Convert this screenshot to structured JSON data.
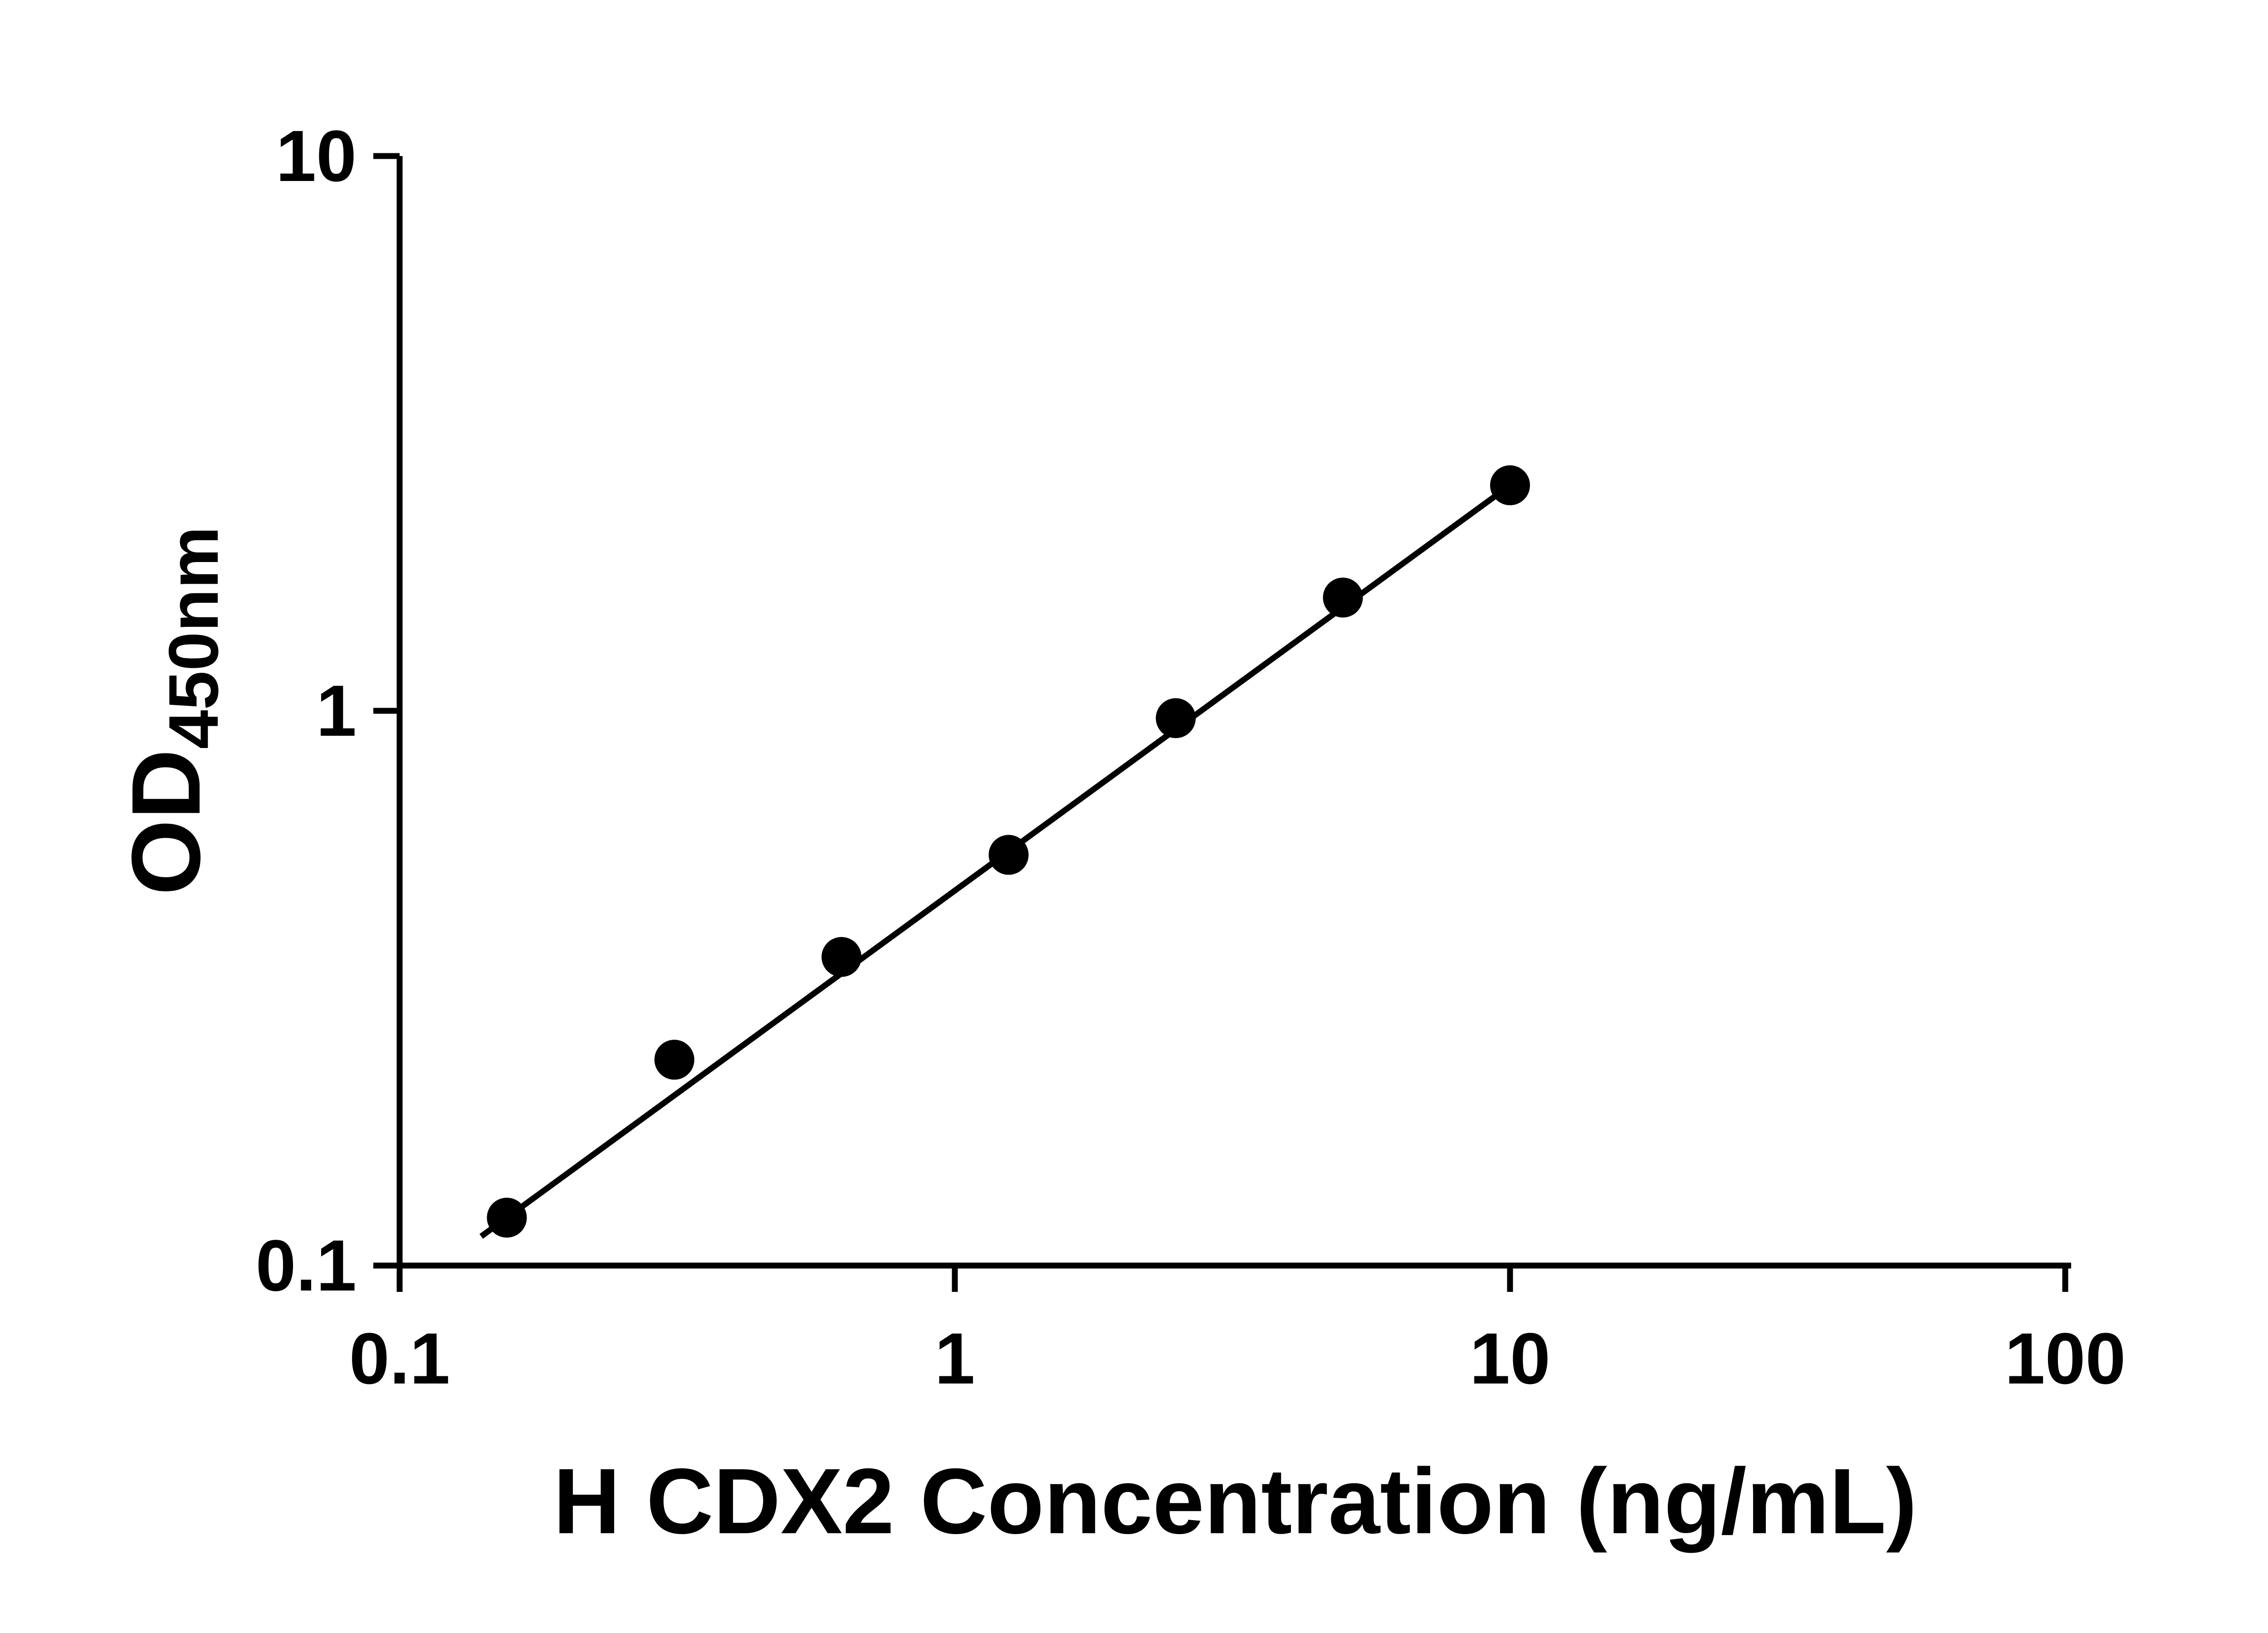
{
  "chart_data": {
    "type": "scatter",
    "title": "",
    "xlabel": "H CDX2 Concentration (ng/mL)",
    "ylabel": "OD450nm",
    "ylabel_main": "OD",
    "ylabel_sub": "450nm",
    "x_scale": "log",
    "y_scale": "log",
    "xlim": [
      0.1,
      100
    ],
    "ylim": [
      0.1,
      10
    ],
    "grid": false,
    "legend": false,
    "x_ticks": [
      {
        "value": 0.1,
        "label": "0.1"
      },
      {
        "value": 1,
        "label": "1"
      },
      {
        "value": 10,
        "label": "10"
      },
      {
        "value": 100,
        "label": "100"
      }
    ],
    "y_ticks": [
      {
        "value": 0.1,
        "label": "0.1"
      },
      {
        "value": 1,
        "label": "1"
      },
      {
        "value": 10,
        "label": "10"
      }
    ],
    "points": [
      {
        "x": 0.156,
        "y": 0.122
      },
      {
        "x": 0.3125,
        "y": 0.235
      },
      {
        "x": 0.625,
        "y": 0.36
      },
      {
        "x": 1.25,
        "y": 0.55
      },
      {
        "x": 2.5,
        "y": 0.97
      },
      {
        "x": 5,
        "y": 1.6
      },
      {
        "x": 10,
        "y": 2.55
      }
    ],
    "trend_line": true,
    "colors": {
      "axis": "#000000",
      "marker": "#000000",
      "line": "#000000",
      "background": "#ffffff"
    }
  }
}
